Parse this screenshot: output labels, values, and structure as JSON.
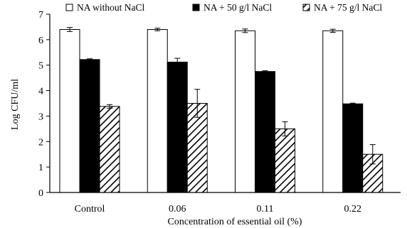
{
  "chart_data": {
    "type": "bar",
    "title": "",
    "xlabel": "Concentration of essential oil (%)",
    "ylabel": "Log CFU/ml",
    "categories": [
      "Control",
      "0.06",
      "0.11",
      "0.22"
    ],
    "ylim": [
      0,
      7
    ],
    "yticks": [
      0,
      1,
      2,
      3,
      4,
      5,
      6,
      7
    ],
    "grid": false,
    "legend_position": "top",
    "series": [
      {
        "name": "NA without NaCl",
        "fill": "white",
        "values": [
          6.4,
          6.4,
          6.35,
          6.35
        ],
        "errors": [
          0.08,
          0.05,
          0.07,
          0.06
        ]
      },
      {
        "name": "NA + 50 g/l NaCl",
        "fill": "black",
        "values": [
          5.22,
          5.12,
          4.75,
          3.48
        ],
        "errors": [
          0.03,
          0.15,
          0.03,
          0.03
        ]
      },
      {
        "name": "NA + 75 g/l NaCl",
        "fill": "hatched",
        "values": [
          3.38,
          3.5,
          2.5,
          1.5
        ],
        "errors": [
          0.07,
          0.55,
          0.28,
          0.38
        ]
      }
    ],
    "colors": {
      "axis": "#000000",
      "bar_stroke": "#000000"
    }
  }
}
